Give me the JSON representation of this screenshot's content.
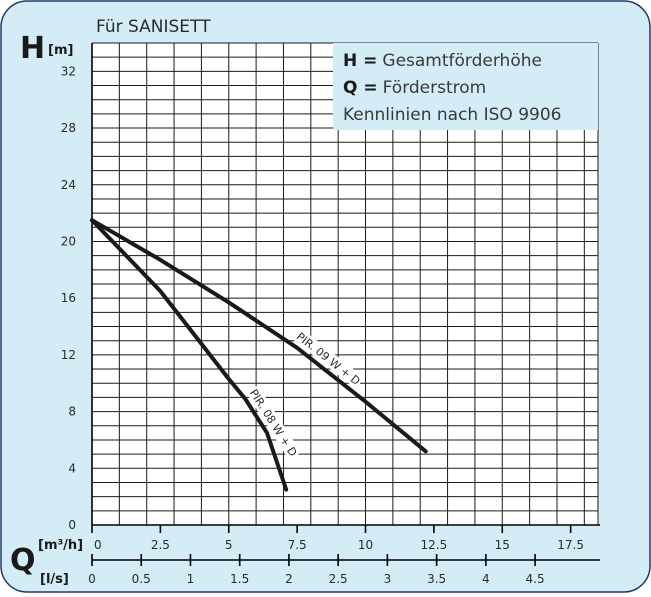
{
  "title": "Für SANISETT",
  "colors": {
    "background": "#d3ecf5",
    "frame": "#1e3a6a",
    "grid": "#1a1a1a",
    "curve": "#1a1a1a",
    "legend_bg": "#d3ecf5"
  },
  "legend": {
    "line1_key": "H =",
    "line1_text": "Gesamtförderhöhe",
    "line2_key": "Q =",
    "line2_text": "Förderstrom",
    "line3_text": "Kennlinien nach ISO 9906"
  },
  "axis_labels": {
    "h_letter": "H",
    "h_unit": "[m]",
    "q_letter": "Q",
    "q_unit_m3h": "[m³/h]",
    "q_unit_ls": "[l/s]"
  },
  "chart_data": {
    "type": "line",
    "title": "Für SANISETT",
    "xlabel": "Q",
    "ylabel": "H [m]",
    "x_unit": "m³/h",
    "x_secondary_unit": "l/s",
    "xlim": [
      0,
      18.5
    ],
    "ylim": [
      0,
      34
    ],
    "y_ticks": [
      0,
      4,
      8,
      12,
      16,
      20,
      24,
      28,
      32
    ],
    "x_ticks_m3h": [
      "0",
      "2.5",
      "5",
      "7.5",
      "10",
      "12.5",
      "15",
      "17.5"
    ],
    "x_ticks_ls": [
      "0",
      "0.5",
      "1",
      "1.5",
      "2",
      "2.5",
      "3",
      "3.5",
      "4",
      "4.5"
    ],
    "grid": true,
    "series": [
      {
        "name": "PIR. 09 W + D",
        "points": [
          [
            0,
            21.5
          ],
          [
            2.5,
            18.7
          ],
          [
            5,
            15.7
          ],
          [
            7.5,
            12.5
          ],
          [
            10,
            8.7
          ],
          [
            12.2,
            5.2
          ]
        ]
      },
      {
        "name": "PIR. 08 W + D",
        "points": [
          [
            0,
            21.5
          ],
          [
            2.5,
            16.5
          ],
          [
            5,
            10.3
          ],
          [
            5.6,
            8.9
          ],
          [
            6.4,
            6.5
          ],
          [
            7.1,
            2.5
          ]
        ]
      }
    ]
  }
}
